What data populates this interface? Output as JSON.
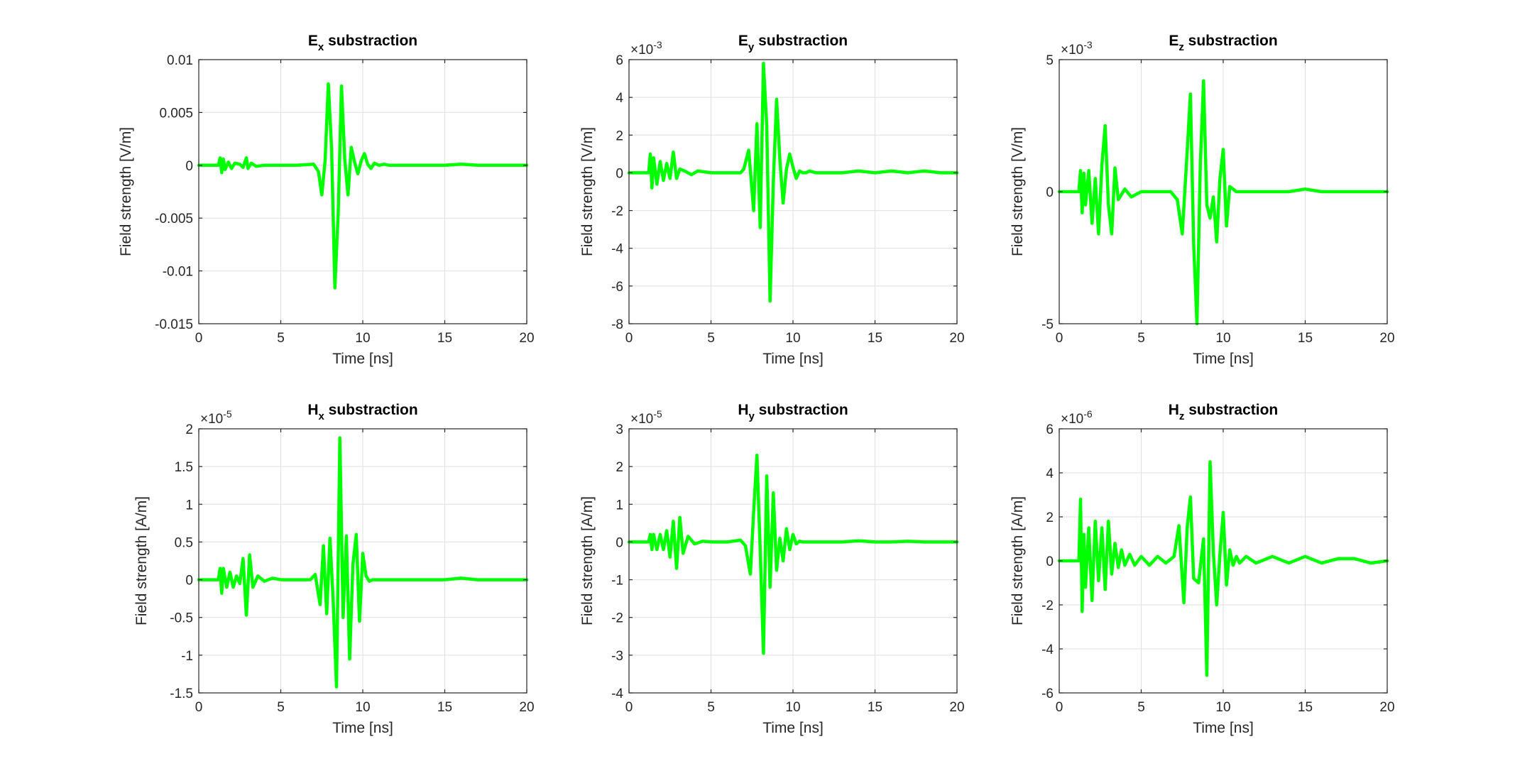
{
  "chart_data": [
    {
      "type": "line",
      "title": {
        "main": "E",
        "sub": "x",
        "rest": " substraction"
      },
      "xlabel": "Time [ns]",
      "ylabel": "Field strength [V/m]",
      "xlim": [
        0,
        20
      ],
      "ylim": [
        -0.015,
        0.01
      ],
      "xticks": [
        0,
        5,
        10,
        15,
        20
      ],
      "xtick_labels": [
        "0",
        "5",
        "10",
        "15",
        "20"
      ],
      "yticks": [
        -0.015,
        -0.01,
        -0.005,
        0,
        0.005,
        0.01
      ],
      "ytick_labels": [
        "-0.015",
        "-0.01",
        "-0.005",
        "0",
        "0.005",
        "0.01"
      ],
      "exponent": "",
      "grid": true,
      "color": "#00ff00",
      "series": [
        {
          "x": [
            0,
            1.2,
            1.3,
            1.4,
            1.5,
            1.6,
            1.8,
            2.0,
            2.2,
            2.5,
            2.7,
            2.9,
            3.0,
            3.2,
            3.5,
            4,
            5,
            6,
            7.0,
            7.3,
            7.5,
            7.7,
            7.9,
            8.1,
            8.3,
            8.5,
            8.7,
            8.9,
            9.1,
            9.3,
            9.5,
            9.7,
            9.9,
            10.1,
            10.3,
            10.5,
            10.7,
            11.0,
            11.3,
            11.6,
            12,
            13,
            14,
            15,
            16,
            17,
            18,
            19,
            20
          ],
          "y": [
            0,
            0,
            0.0007,
            -0.0007,
            0.0006,
            -0.0004,
            0.0003,
            -0.0003,
            0.0002,
            0.0001,
            -0.0002,
            0.0007,
            -0.0003,
            0.0002,
            -0.0001,
            0,
            0,
            0,
            0.0001,
            -0.0006,
            -0.0028,
            0.0004,
            0.0077,
            0.0015,
            -0.0116,
            -0.0045,
            0.0075,
            0.0006,
            -0.0028,
            0.0017,
            0.0003,
            -0.0008,
            0.0004,
            0.0011,
            0.0001,
            -0.0003,
            0.0002,
            0,
            0.0001,
            0,
            0,
            0,
            0,
            0,
            0.0001,
            0,
            0,
            0,
            0
          ]
        }
      ]
    },
    {
      "type": "line",
      "title": {
        "main": "E",
        "sub": "y",
        "rest": " substraction"
      },
      "xlabel": "Time [ns]",
      "ylabel": "Field strength [V/m]",
      "xlim": [
        0,
        20
      ],
      "ylim": [
        -8,
        6
      ],
      "xticks": [
        0,
        5,
        10,
        15,
        20
      ],
      "xtick_labels": [
        "0",
        "5",
        "10",
        "15",
        "20"
      ],
      "yticks": [
        -8,
        -6,
        -4,
        -2,
        0,
        2,
        4,
        6
      ],
      "ytick_labels": [
        "-8",
        "-6",
        "-4",
        "-2",
        "0",
        "2",
        "4",
        "6"
      ],
      "exponent": "-3",
      "grid": true,
      "color": "#00ff00",
      "series": [
        {
          "x": [
            0,
            1.2,
            1.3,
            1.4,
            1.5,
            1.7,
            1.9,
            2.1,
            2.3,
            2.5,
            2.7,
            2.9,
            3.1,
            3.4,
            3.8,
            4.2,
            5,
            6,
            6.8,
            7.0,
            7.3,
            7.6,
            7.8,
            8.0,
            8.2,
            8.4,
            8.6,
            8.8,
            9.0,
            9.2,
            9.4,
            9.6,
            9.8,
            10.0,
            10.2,
            10.4,
            10.6,
            10.8,
            11.0,
            11.4,
            12,
            13,
            14,
            15,
            16,
            17,
            18,
            19,
            20
          ],
          "y": [
            0,
            0,
            1.0,
            -0.8,
            0.8,
            -0.6,
            0.6,
            -0.4,
            0.5,
            -0.3,
            1.1,
            -0.3,
            0.2,
            0.1,
            -0.1,
            0.1,
            0,
            0,
            0,
            0.2,
            1.2,
            -2.0,
            2.6,
            -2.9,
            5.8,
            2.5,
            -6.8,
            -0.5,
            3.9,
            0.7,
            -1.6,
            0.2,
            1.0,
            0.3,
            -0.3,
            0.1,
            0,
            0,
            0.1,
            0,
            0,
            0,
            0.1,
            0,
            0.1,
            0,
            0.1,
            0,
            0
          ]
        }
      ]
    },
    {
      "type": "line",
      "title": {
        "main": "E",
        "sub": "z",
        "rest": " substraction"
      },
      "xlabel": "Time [ns]",
      "ylabel": "Field strength [V/m]",
      "xlim": [
        0,
        20
      ],
      "ylim": [
        -5,
        5
      ],
      "xticks": [
        0,
        5,
        10,
        15,
        20
      ],
      "xtick_labels": [
        "0",
        "5",
        "10",
        "15",
        "20"
      ],
      "yticks": [
        -5,
        0,
        5
      ],
      "ytick_labels": [
        "-5",
        "0",
        "5"
      ],
      "exponent": "-3",
      "grid": true,
      "color": "#00ff00",
      "series": [
        {
          "x": [
            0,
            1.2,
            1.3,
            1.4,
            1.5,
            1.6,
            1.8,
            2.0,
            2.2,
            2.4,
            2.6,
            2.8,
            3.0,
            3.2,
            3.4,
            3.6,
            4.0,
            4.4,
            5,
            6,
            6.8,
            7.2,
            7.5,
            7.8,
            8.0,
            8.2,
            8.4,
            8.6,
            8.8,
            9.0,
            9.2,
            9.4,
            9.6,
            9.8,
            10.0,
            10.2,
            10.4,
            10.6,
            10.8,
            11.0,
            11.4,
            12,
            13,
            14,
            15,
            16,
            17,
            18,
            19,
            20
          ],
          "y": [
            0,
            0,
            0.8,
            -0.8,
            0.7,
            -0.5,
            0.8,
            -1.2,
            0.5,
            -1.6,
            1.0,
            2.5,
            -0.5,
            -1.6,
            0.9,
            -0.3,
            0.1,
            -0.2,
            0,
            0,
            0,
            -0.3,
            -1.6,
            1.5,
            3.7,
            -2.0,
            -5.0,
            1.0,
            4.2,
            -0.5,
            -1.0,
            -0.2,
            -1.9,
            0.5,
            1.6,
            -1.3,
            0.2,
            0.1,
            0,
            0,
            0,
            0,
            0,
            0,
            0.1,
            0,
            0,
            0,
            0,
            0
          ]
        }
      ]
    },
    {
      "type": "line",
      "title": {
        "main": "H",
        "sub": "x",
        "rest": " substraction"
      },
      "xlabel": "Time [ns]",
      "ylabel": "Field strength [A/m]",
      "xlim": [
        0,
        20
      ],
      "ylim": [
        -1.5,
        2
      ],
      "xticks": [
        0,
        5,
        10,
        15,
        20
      ],
      "xtick_labels": [
        "0",
        "5",
        "10",
        "15",
        "20"
      ],
      "yticks": [
        -1.5,
        -1,
        -0.5,
        0,
        0.5,
        1,
        1.5,
        2
      ],
      "ytick_labels": [
        "-1.5",
        "-1",
        "-0.5",
        "0",
        "0.5",
        "1",
        "1.5",
        "2"
      ],
      "exponent": "-5",
      "grid": true,
      "color": "#00ff00",
      "series": [
        {
          "x": [
            0,
            1.2,
            1.3,
            1.4,
            1.5,
            1.7,
            1.9,
            2.1,
            2.3,
            2.5,
            2.7,
            2.9,
            3.1,
            3.3,
            3.6,
            4.0,
            4.5,
            5,
            6,
            6.8,
            7.1,
            7.4,
            7.6,
            7.8,
            8.0,
            8.2,
            8.4,
            8.6,
            8.8,
            9.0,
            9.2,
            9.4,
            9.6,
            9.8,
            10.0,
            10.2,
            10.4,
            10.6,
            10.8,
            11.0,
            11.4,
            12,
            13,
            14,
            15,
            16,
            17,
            18,
            19,
            20
          ],
          "y": [
            0,
            0,
            0.15,
            -0.18,
            0.15,
            -0.1,
            0.1,
            -0.1,
            0.05,
            -0.05,
            0.28,
            -0.47,
            0.33,
            -0.1,
            0.05,
            -0.02,
            0.02,
            0,
            0,
            0,
            0.07,
            -0.33,
            0.45,
            -0.45,
            0.55,
            -0.3,
            -1.42,
            1.88,
            -0.5,
            0.58,
            -1.05,
            0.2,
            0.6,
            -0.55,
            0.35,
            0.05,
            -0.02,
            0,
            0,
            0,
            0,
            0,
            0,
            0,
            0,
            0.02,
            0,
            0,
            0,
            0
          ]
        }
      ]
    },
    {
      "type": "line",
      "title": {
        "main": "H",
        "sub": "y",
        "rest": " substraction"
      },
      "xlabel": "Time [ns]",
      "ylabel": "Field strength [A/m]",
      "xlim": [
        0,
        20
      ],
      "ylim": [
        -4,
        3
      ],
      "xticks": [
        0,
        5,
        10,
        15,
        20
      ],
      "xtick_labels": [
        "0",
        "5",
        "10",
        "15",
        "20"
      ],
      "yticks": [
        -4,
        -3,
        -2,
        -1,
        0,
        1,
        2,
        3
      ],
      "ytick_labels": [
        "-4",
        "-3",
        "-2",
        "-1",
        "0",
        "1",
        "2",
        "3"
      ],
      "exponent": "-5",
      "grid": true,
      "color": "#00ff00",
      "series": [
        {
          "x": [
            0,
            1.2,
            1.3,
            1.4,
            1.5,
            1.7,
            1.9,
            2.1,
            2.3,
            2.5,
            2.7,
            2.9,
            3.1,
            3.3,
            3.6,
            4.0,
            4.5,
            5,
            6,
            6.8,
            7.1,
            7.4,
            7.6,
            7.8,
            8.0,
            8.2,
            8.4,
            8.6,
            8.8,
            9.0,
            9.2,
            9.4,
            9.6,
            9.8,
            10.0,
            10.2,
            10.4,
            10.6,
            10.8,
            11.0,
            11.4,
            12,
            13,
            14,
            15,
            16,
            17,
            18,
            19,
            20
          ],
          "y": [
            0,
            0,
            0.2,
            -0.2,
            0.2,
            -0.2,
            0.2,
            -0.2,
            0.3,
            -0.4,
            0.55,
            -0.7,
            0.65,
            -0.3,
            0.15,
            -0.05,
            0.02,
            0,
            0,
            0.05,
            -0.1,
            -0.85,
            0.8,
            2.3,
            -0.2,
            -2.95,
            1.75,
            -1.2,
            1.3,
            -0.75,
            0.1,
            -0.5,
            0.35,
            -0.2,
            0.2,
            -0.05,
            0.02,
            0,
            0,
            0,
            0,
            0,
            0,
            0.03,
            0,
            0,
            0.02,
            0,
            0,
            0
          ]
        }
      ]
    },
    {
      "type": "line",
      "title": {
        "main": "H",
        "sub": "z",
        "rest": " substraction"
      },
      "xlabel": "Time [ns]",
      "ylabel": "Field strength [A/m]",
      "xlim": [
        0,
        20
      ],
      "ylim": [
        -6,
        6
      ],
      "xticks": [
        0,
        5,
        10,
        15,
        20
      ],
      "xtick_labels": [
        "0",
        "5",
        "10",
        "15",
        "20"
      ],
      "yticks": [
        -6,
        -4,
        -2,
        0,
        2,
        4,
        6
      ],
      "ytick_labels": [
        "-6",
        "-4",
        "-2",
        "0",
        "2",
        "4",
        "6"
      ],
      "exponent": "-6",
      "grid": true,
      "color": "#00ff00",
      "series": [
        {
          "x": [
            0,
            1.2,
            1.3,
            1.4,
            1.5,
            1.6,
            1.8,
            2.0,
            2.2,
            2.4,
            2.6,
            2.8,
            3.0,
            3.2,
            3.4,
            3.6,
            3.8,
            4.0,
            4.3,
            4.6,
            5.0,
            5.5,
            6.0,
            6.5,
            7.0,
            7.3,
            7.6,
            7.8,
            8.0,
            8.2,
            8.5,
            8.8,
            9.0,
            9.2,
            9.4,
            9.6,
            9.8,
            10.0,
            10.2,
            10.4,
            10.6,
            10.8,
            11.0,
            11.4,
            12,
            13,
            14,
            15,
            16,
            17,
            18,
            19,
            20
          ],
          "y": [
            0,
            0,
            2.8,
            -2.3,
            1.2,
            -1.2,
            1.5,
            -1.8,
            1.8,
            -0.9,
            1.5,
            -1.3,
            1.8,
            -0.6,
            0.8,
            -0.3,
            0.5,
            -0.2,
            0.3,
            -0.2,
            0.2,
            -0.2,
            0.2,
            -0.1,
            0.2,
            1.6,
            -1.9,
            1.5,
            2.9,
            -0.8,
            -1.0,
            1.0,
            -5.2,
            4.5,
            0.4,
            -2.0,
            0.3,
            2.2,
            -1.1,
            0.5,
            -0.2,
            0.2,
            -0.1,
            0.2,
            -0.1,
            0.2,
            -0.1,
            0.2,
            -0.1,
            0.1,
            0.1,
            -0.1,
            0
          ]
        }
      ]
    }
  ]
}
